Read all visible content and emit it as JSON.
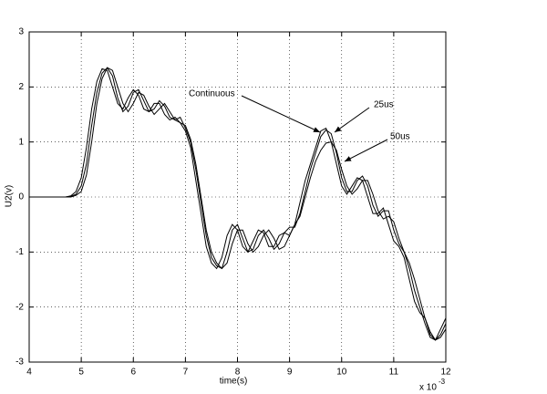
{
  "chart_data": {
    "type": "line",
    "xlabel": "time(s)",
    "ylabel": "U2(v)",
    "x_multiplier": "x 10",
    "x_multiplier_exponent": "-3",
    "x": [
      4.0,
      4.1,
      4.2,
      4.3,
      4.4,
      4.5,
      4.6,
      4.7,
      4.8,
      4.9,
      5.0,
      5.1,
      5.2,
      5.3,
      5.4,
      5.5,
      5.6,
      5.7,
      5.8,
      5.9,
      6.0,
      6.1,
      6.2,
      6.3,
      6.4,
      6.5,
      6.6,
      6.7,
      6.8,
      6.9,
      7.0,
      7.1,
      7.2,
      7.3,
      7.4,
      7.5,
      7.6,
      7.7,
      7.8,
      7.9,
      8.0,
      8.1,
      8.2,
      8.3,
      8.4,
      8.5,
      8.6,
      8.7,
      8.8,
      8.9,
      9.0,
      9.1,
      9.2,
      9.3,
      9.4,
      9.5,
      9.6,
      9.7,
      9.8,
      9.9,
      10.0,
      10.1,
      10.2,
      10.3,
      10.4,
      10.5,
      10.6,
      10.7,
      10.8,
      10.9,
      11.0,
      11.1,
      11.2,
      11.3,
      11.4,
      11.5,
      11.6,
      11.7,
      11.8,
      11.9,
      12.0
    ],
    "series": [
      {
        "name": "Continuous",
        "color": "#000000",
        "values": [
          0,
          0,
          0,
          0,
          0,
          0,
          0,
          0,
          0.02,
          0.1,
          0.35,
          0.9,
          1.6,
          2.1,
          2.33,
          2.3,
          2.0,
          1.7,
          1.6,
          1.8,
          1.95,
          1.85,
          1.6,
          1.55,
          1.7,
          1.7,
          1.5,
          1.4,
          1.45,
          1.35,
          1.2,
          0.9,
          0.3,
          -0.3,
          -0.9,
          -1.2,
          -1.3,
          -1.1,
          -0.7,
          -0.5,
          -0.6,
          -0.9,
          -1.0,
          -0.8,
          -0.6,
          -0.65,
          -0.9,
          -0.9,
          -0.7,
          -0.65,
          -0.7,
          -0.5,
          -0.1,
          0.3,
          0.6,
          0.9,
          1.2,
          1.25,
          1.0,
          0.6,
          0.2,
          0.05,
          0.2,
          0.35,
          0.3,
          0.0,
          -0.3,
          -0.3,
          -0.2,
          -0.5,
          -0.8,
          -0.9,
          -1.1,
          -1.5,
          -1.9,
          -2.1,
          -2.2,
          -2.5,
          -2.6,
          -2.4,
          -2.2
        ]
      },
      {
        "name": "25us",
        "color": "#000000",
        "values": [
          0,
          0,
          0,
          0,
          0,
          0,
          0,
          0,
          0.01,
          0.05,
          0.2,
          0.6,
          1.3,
          1.9,
          2.25,
          2.35,
          2.2,
          1.8,
          1.55,
          1.65,
          1.9,
          1.95,
          1.75,
          1.55,
          1.6,
          1.75,
          1.65,
          1.45,
          1.4,
          1.45,
          1.25,
          1.0,
          0.5,
          -0.1,
          -0.7,
          -1.1,
          -1.25,
          -1.3,
          -1.0,
          -0.6,
          -0.5,
          -0.75,
          -1.0,
          -0.95,
          -0.7,
          -0.6,
          -0.75,
          -0.95,
          -0.85,
          -0.65,
          -0.55,
          -0.55,
          -0.3,
          0.1,
          0.5,
          0.8,
          1.1,
          1.22,
          1.15,
          0.8,
          0.35,
          0.1,
          0.1,
          0.3,
          0.38,
          0.2,
          -0.15,
          -0.35,
          -0.25,
          -0.25,
          -0.6,
          -0.85,
          -1.0,
          -1.3,
          -1.7,
          -2.0,
          -2.3,
          -2.55,
          -2.6,
          -2.5,
          -2.3
        ]
      },
      {
        "name": "50us",
        "color": "#000000",
        "values": [
          0,
          0,
          0,
          0,
          0,
          0,
          0,
          0,
          0,
          0.03,
          0.1,
          0.4,
          1.0,
          1.7,
          2.15,
          2.35,
          2.3,
          2.0,
          1.7,
          1.55,
          1.7,
          1.9,
          1.85,
          1.65,
          1.5,
          1.6,
          1.7,
          1.55,
          1.4,
          1.35,
          1.3,
          1.05,
          0.6,
          0,
          -0.6,
          -1.0,
          -1.2,
          -1.3,
          -1.2,
          -0.85,
          -0.6,
          -0.6,
          -0.85,
          -1.0,
          -0.9,
          -0.7,
          -0.6,
          -0.75,
          -0.95,
          -0.9,
          -0.7,
          -0.5,
          -0.35,
          0,
          0.35,
          0.65,
          0.85,
          0.98,
          1.0,
          0.85,
          0.5,
          0.2,
          0.05,
          0.15,
          0.3,
          0.3,
          0.05,
          -0.25,
          -0.4,
          -0.35,
          -0.45,
          -0.75,
          -1.0,
          -1.2,
          -1.5,
          -1.85,
          -2.2,
          -2.45,
          -2.6,
          -2.55,
          -2.4
        ]
      }
    ],
    "xlim": [
      4,
      12
    ],
    "xticks": [
      4,
      5,
      6,
      7,
      8,
      9,
      10,
      11,
      12
    ],
    "ylim": [
      -3,
      3
    ],
    "yticks": [
      -3,
      -2,
      -1,
      0,
      1,
      2,
      3
    ],
    "grid": true
  }
}
